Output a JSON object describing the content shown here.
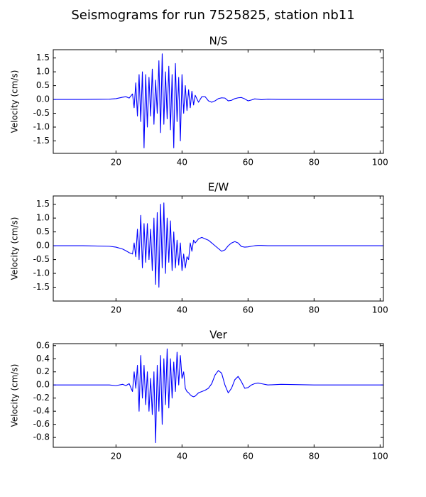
{
  "title": "Seismograms for run 7525825, station nb11",
  "chart_data": [
    {
      "type": "line",
      "title": "N/S",
      "y_label": "Velocity (cm/s)",
      "color": "#0000ff",
      "xlim": [
        1,
        101
      ],
      "xticks": [
        20,
        40,
        60,
        80,
        100
      ],
      "ylim": [
        -1.95,
        1.8
      ],
      "yticks": [
        -1.5,
        {
          "value": -1,
          "label": "-1.0"
        },
        -0.5,
        {
          "value": 0,
          "label": "0.0"
        },
        0.5,
        {
          "value": 1,
          "label": "1.0"
        },
        1.5
      ],
      "x": [
        1,
        10,
        18,
        20,
        22,
        23,
        24,
        25,
        25.5,
        26,
        26.5,
        27,
        27.5,
        28,
        28.5,
        29,
        29.5,
        30,
        30.5,
        31,
        31.5,
        32,
        32.5,
        33,
        33.5,
        34,
        34.5,
        35,
        35.5,
        36,
        36.5,
        37,
        37.5,
        38,
        38.5,
        39,
        39.5,
        40,
        40.5,
        41,
        41.5,
        42,
        42.5,
        43,
        43.5,
        44,
        45,
        46,
        47,
        48,
        49,
        50,
        51,
        52,
        53,
        54,
        55,
        56,
        57,
        58,
        59,
        60,
        61,
        62,
        63,
        64,
        66,
        70,
        80,
        101
      ],
      "values": [
        0,
        0,
        0.01,
        0.03,
        0.08,
        0.1,
        0.05,
        0.2,
        -0.3,
        0.6,
        -0.6,
        0.9,
        -0.8,
        1.0,
        -1.75,
        0.9,
        -1.0,
        0.8,
        -0.6,
        1.1,
        -0.9,
        0.7,
        -0.5,
        1.4,
        -1.2,
        1.65,
        -0.9,
        1.0,
        -0.7,
        1.2,
        -1.1,
        0.9,
        -1.75,
        1.3,
        -0.8,
        0.8,
        -1.5,
        0.9,
        -0.5,
        0.5,
        -0.4,
        0.35,
        -0.3,
        0.3,
        -0.2,
        0.15,
        -0.1,
        0.1,
        0.1,
        -0.05,
        -0.1,
        -0.05,
        0.03,
        0.06,
        0.05,
        -0.05,
        -0.03,
        0.03,
        0.06,
        0.07,
        0.02,
        -0.05,
        -0.02,
        0.02,
        0.01,
        -0.01,
        0.01,
        0,
        0,
        0
      ]
    },
    {
      "type": "line",
      "title": "E/W",
      "y_label": "Velocity (cm/s)",
      "color": "#0000ff",
      "xlim": [
        1,
        101
      ],
      "xticks": [
        20,
        40,
        60,
        80,
        100
      ],
      "ylim": [
        -2.0,
        1.8
      ],
      "yticks": [
        -1.5,
        {
          "value": -1,
          "label": "-1.0"
        },
        -0.5,
        {
          "value": 0,
          "label": "0.0"
        },
        0.5,
        {
          "value": 1,
          "label": "1.0"
        },
        1.5
      ],
      "x": [
        1,
        10,
        18,
        20,
        22,
        23,
        24,
        25,
        25.5,
        26,
        26.5,
        27,
        27.5,
        28,
        28.5,
        29,
        29.5,
        30,
        30.5,
        31,
        31.5,
        32,
        32.5,
        33,
        33.5,
        34,
        34.5,
        35,
        35.5,
        36,
        36.5,
        37,
        37.5,
        38,
        38.5,
        39,
        39.5,
        40,
        40.5,
        41,
        41.5,
        42,
        42.5,
        43,
        43.5,
        44,
        45,
        46,
        47,
        48,
        49,
        50,
        51,
        52,
        53,
        54,
        55,
        56,
        57,
        58,
        59,
        60,
        61,
        62,
        63,
        64,
        66,
        70,
        80,
        101
      ],
      "values": [
        0,
        0,
        -0.02,
        -0.05,
        -0.12,
        -0.18,
        -0.25,
        -0.3,
        0.1,
        -0.4,
        0.6,
        -0.5,
        1.1,
        -0.8,
        0.8,
        -0.6,
        0.8,
        -0.5,
        0.6,
        -0.9,
        1.0,
        -1.4,
        1.2,
        -1.5,
        1.5,
        -0.8,
        1.55,
        -1.0,
        1.0,
        -0.6,
        0.9,
        -0.9,
        0.5,
        -0.8,
        0.2,
        -0.7,
        0.1,
        -0.9,
        -0.3,
        -0.8,
        -0.4,
        -0.5,
        0.1,
        -0.2,
        0.2,
        0.1,
        0.25,
        0.3,
        0.25,
        0.2,
        0.1,
        0,
        -0.1,
        -0.2,
        -0.15,
        0,
        0.1,
        0.15,
        0.1,
        -0.03,
        -0.05,
        -0.04,
        -0.02,
        0,
        0.01,
        0.01,
        0,
        0,
        0,
        0
      ]
    },
    {
      "type": "line",
      "title": "Ver",
      "y_label": "Velocity (cm/s)",
      "color": "#0000ff",
      "xlim": [
        1,
        101
      ],
      "xticks": [
        20,
        40,
        60,
        80,
        100
      ],
      "ylim": [
        -0.95,
        0.63
      ],
      "yticks": [
        -0.8,
        -0.6,
        -0.4,
        -0.2,
        {
          "value": 0,
          "label": "0.0"
        },
        0.2,
        0.4,
        0.6
      ],
      "x": [
        1,
        10,
        18,
        20,
        22,
        23,
        24,
        25,
        25.5,
        26,
        26.5,
        27,
        27.5,
        28,
        28.5,
        29,
        29.5,
        30,
        30.5,
        31,
        31.5,
        32,
        32.5,
        33,
        33.5,
        34,
        34.5,
        35,
        35.5,
        36,
        36.5,
        37,
        37.5,
        38,
        38.5,
        39,
        39.5,
        40,
        40.5,
        41,
        41.5,
        42,
        42.5,
        43,
        43.5,
        44,
        45,
        46,
        47,
        48,
        49,
        50,
        51,
        52,
        53,
        54,
        55,
        56,
        57,
        58,
        59,
        60,
        61,
        62,
        63,
        64,
        66,
        70,
        80,
        101
      ],
      "values": [
        0,
        0,
        0,
        -0.01,
        0.01,
        -0.01,
        0.02,
        -0.1,
        0.2,
        -0.05,
        0.3,
        -0.4,
        0.45,
        -0.2,
        0.3,
        -0.3,
        0.2,
        -0.4,
        0.1,
        -0.45,
        0.2,
        -0.88,
        0.3,
        -0.4,
        0.45,
        -0.6,
        0.4,
        -0.3,
        0.55,
        -0.35,
        0.4,
        -0.2,
        0.35,
        -0.1,
        0.5,
        0,
        0.45,
        0.1,
        0.2,
        -0.05,
        -0.1,
        -0.12,
        -0.15,
        -0.17,
        -0.18,
        -0.17,
        -0.12,
        -0.1,
        -0.08,
        -0.05,
        0.02,
        0.15,
        0.22,
        0.18,
        0,
        -0.12,
        -0.05,
        0.08,
        0.13,
        0.05,
        -0.05,
        -0.04,
        0,
        0.02,
        0.03,
        0.02,
        0,
        0.01,
        0,
        0
      ]
    }
  ]
}
